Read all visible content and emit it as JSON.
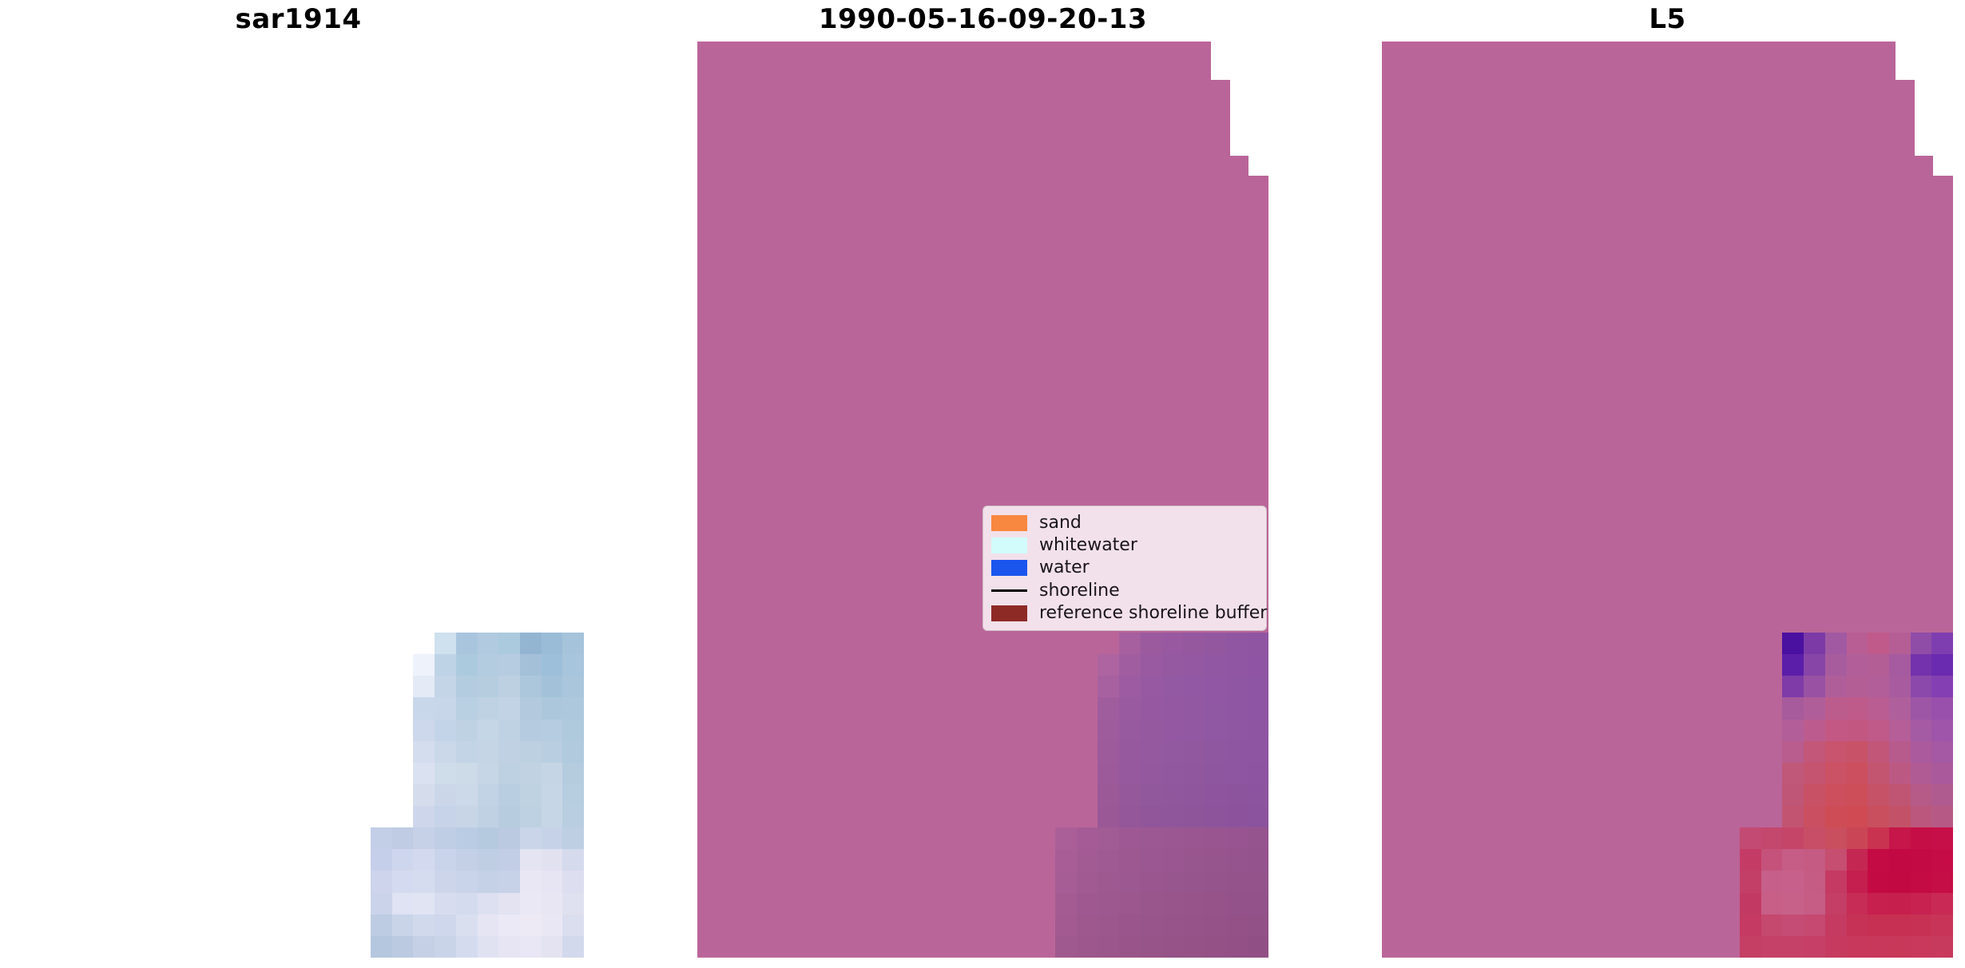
{
  "figure": {
    "type": "multi-panel image comparison",
    "background": "#ffffff"
  },
  "colors": {
    "scene_pink": "#ba6599",
    "title_color": "#000000"
  },
  "panels": {
    "left": {
      "title": "sar1914"
    },
    "middle": {
      "title": "1990-05-16-09-20-13"
    },
    "right": {
      "title": "L5"
    }
  },
  "legend": {
    "background": "#f2e1ea",
    "border": "#cfc0c9",
    "items": [
      {
        "label": "sand",
        "color": "#f8873f",
        "type": "patch"
      },
      {
        "label": "whitewater",
        "color": "#d2fbfb",
        "type": "patch"
      },
      {
        "label": "water",
        "color": "#1a56ee",
        "type": "patch"
      },
      {
        "label": "shoreline",
        "color": "#000000",
        "type": "line"
      },
      {
        "label": "reference shoreline buffer",
        "color": "#8e2a26",
        "type": "patch"
      }
    ]
  },
  "chart_data": [
    {
      "type": "heatmap",
      "title": "sar1914",
      "description": "Pixelated SAR backscatter tile, L-shaped footprint, pale blue shades on white background",
      "grid_rows": 15,
      "grid_cols": 10,
      "background": null,
      "cell_colors": [
        [
          null,
          null,
          null,
          "#cfe0ee",
          "#a9c5de",
          "#b1cadf",
          "#accadd",
          "#93b5d2",
          "#9bbcd7",
          "#a5c3da"
        ],
        [
          null,
          null,
          "#eef2fb",
          "#bfd3e6",
          "#accade",
          "#b4cce0",
          "#b6cce0",
          "#a4c0d8",
          "#9ebfda",
          "#a7c5dc"
        ],
        [
          null,
          null,
          "#e4eaf6",
          "#c4d5e7",
          "#b3cce0",
          "#b6cde0",
          "#bdd0e2",
          "#acc6db",
          "#a3c2da",
          "#aac6dc"
        ],
        [
          null,
          null,
          "#c9d7eb",
          "#c7d7e9",
          "#b9cfe2",
          "#bed2e3",
          "#c1d3e4",
          "#b3cade",
          "#acc7db",
          "#adc8dc"
        ],
        [
          null,
          null,
          "#cdd8ec",
          "#c4d4e8",
          "#bfd2e4",
          "#c5d6e6",
          "#bfd2e3",
          "#b5cbdf",
          "#b6cce0",
          "#afc9dd"
        ],
        [
          null,
          null,
          "#d4ddee",
          "#cad8ea",
          "#c3d4e6",
          "#c5d5e6",
          "#bfd1e3",
          "#bcd0e1",
          "#b9cee1",
          "#b1cade"
        ],
        [
          null,
          null,
          "#dae1f1",
          "#cfdcea",
          "#cddae8",
          "#c7d6e6",
          "#bed1e3",
          "#c1d3e3",
          "#c5d5e5",
          "#b5ccdf"
        ],
        [
          null,
          null,
          "#d5dded",
          "#cbd7e9",
          "#ccd9e8",
          "#c2d3e5",
          "#bacee1",
          "#bfd2e2",
          "#c7d6e6",
          "#b7cde0"
        ],
        [
          null,
          null,
          "#cdd6ea",
          "#c6d3e8",
          "#c7d5e7",
          "#c0d1e4",
          "#b8cce0",
          "#bed1e2",
          "#c7d6e6",
          "#bacee1"
        ],
        [
          "#c3cee7",
          "#c0cce4",
          "#c6d1e8",
          "#c0cee5",
          "#bacce3",
          "#b6cadf",
          "#bbcae1",
          "#cad5e9",
          "#c5d2e7",
          "#becfe3"
        ],
        [
          "#c6cfe9",
          "#ced6ed",
          "#d3daef",
          "#c9d3e9",
          "#c4d0e6",
          "#c0cee4",
          "#c2cee5",
          "#e4e4f2",
          "#e1e1f0",
          "#d5daed"
        ],
        [
          "#cdd4eb",
          "#d4daef",
          "#d6dcf0",
          "#ccd5ea",
          "#c9d3e9",
          "#c5d1e6",
          "#c7d1e7",
          "#eae7f5",
          "#e7e4f3",
          "#dddeef"
        ],
        [
          "#cad3ea",
          "#dfe3f3",
          "#e0e4f3",
          "#d7ddef",
          "#d4dbee",
          "#dde0f1",
          "#e3e3f2",
          "#ebe8f5",
          "#e9e6f4",
          "#e0e1f0"
        ],
        [
          "#bdcce3",
          "#c9d4e9",
          "#d1d9ec",
          "#ced7eb",
          "#dadff0",
          "#e6e5f4",
          "#ebe9f6",
          "#edeaf6",
          "#eae7f4",
          "#dadeee"
        ],
        [
          "#b4c7de",
          "#bbcae1",
          "#c5d0e6",
          "#cad4e9",
          "#d5dbef",
          "#e0e2f2",
          "#e7e5f4",
          "#e9e7f5",
          "#e3e3f1",
          "#d3d9ec"
        ]
      ]
    },
    {
      "type": "heatmap",
      "title": "1990-05-16-09-20-13",
      "description": "Classified scene: pink stepped polygon with muted purple L-shaped overlay in bottom-right",
      "grid_rows": 15,
      "grid_cols": 10,
      "background": "#ba6599",
      "cell_colors": [
        [
          null,
          null,
          null,
          "#a65f9f",
          "#9b5a9e",
          "#9859a0",
          "#95589f",
          "#9357a0",
          "#9156a1",
          "#9055a2"
        ],
        [
          null,
          null,
          "#ad64a0",
          "#a05da0",
          "#995aa1",
          "#9559a2",
          "#9458a2",
          "#9257a3",
          "#9056a3",
          "#8f55a4"
        ],
        [
          null,
          null,
          "#a861a0",
          "#9d5ca1",
          "#975aa2",
          "#9459a3",
          "#9358a3",
          "#9157a4",
          "#8f56a4",
          "#8e55a5"
        ],
        [
          null,
          null,
          "#a05d9e",
          "#9a5aa0",
          "#9659a1",
          "#9458a2",
          "#9258a2",
          "#9057a3",
          "#8f56a3",
          "#8e55a4"
        ],
        [
          null,
          null,
          "#9e5c9d",
          "#985a9f",
          "#9559a0",
          "#9358a1",
          "#9258a1",
          "#9057a2",
          "#8f56a2",
          "#8e55a3"
        ],
        [
          null,
          null,
          "#9d5b9c",
          "#97599e",
          "#94599f",
          "#9258a0",
          "#9158a0",
          "#9057a1",
          "#8e56a1",
          "#8d55a2"
        ],
        [
          null,
          null,
          "#9c5a9a",
          "#96599d",
          "#93589e",
          "#92589f",
          "#90579f",
          "#8f56a0",
          "#8e55a0",
          "#8d54a1"
        ],
        [
          null,
          null,
          "#9b5998",
          "#95589b",
          "#92589c",
          "#91579d",
          "#8f569d",
          "#8e559e",
          "#8d549e",
          "#8c549f"
        ],
        [
          null,
          null,
          "#9a5896",
          "#945799",
          "#91569a",
          "#90569b",
          "#8e559b",
          "#8d549c",
          "#8c539c",
          "#8b539d"
        ],
        [
          "#ab5f98",
          "#a55c96",
          "#a15b95",
          "#9e5994",
          "#9c5893",
          "#9a5792",
          "#995691",
          "#985590",
          "#975490",
          "#96548f"
        ],
        [
          "#a85d96",
          "#a35b94",
          "#9f5a93",
          "#9d5892",
          "#9b5791",
          "#995690",
          "#98568f",
          "#97558e",
          "#96548e",
          "#95538d"
        ],
        [
          "#a65c94",
          "#a15a92",
          "#9e5991",
          "#9c5890",
          "#9a578f",
          "#98568e",
          "#97558d",
          "#96548c",
          "#95538c",
          "#94538b"
        ],
        [
          "#a45b92",
          "#a05990",
          "#9d588f",
          "#9b578e",
          "#99568d",
          "#97558c",
          "#96548b",
          "#95538a",
          "#94528a",
          "#935289"
        ],
        [
          "#a25a90",
          "#9e588e",
          "#9c578d",
          "#9a568c",
          "#98558b",
          "#96548a",
          "#955389",
          "#945288",
          "#935188",
          "#925187"
        ],
        [
          "#a0598e",
          "#9d578c",
          "#9b568b",
          "#99558a",
          "#975489",
          "#955388",
          "#945287",
          "#935186",
          "#925086",
          "#915085"
        ]
      ]
    },
    {
      "type": "heatmap",
      "title": "L5",
      "description": "Classified scene: pink stepped polygon with purple/crimson L-shaped overlay in bottom-right",
      "grid_rows": 15,
      "grid_cols": 10,
      "background": "#ba6599",
      "cell_colors": [
        [
          null,
          null,
          "#4a10a0",
          "#7b3aa6",
          "#a159a2",
          "#b85e94",
          "#c05a8a",
          "#b55e96",
          "#8f4da8",
          "#7f3eb0"
        ],
        [
          null,
          null,
          "#5b1ea9",
          "#8845a8",
          "#a75c9e",
          "#b25f99",
          "#b45e96",
          "#a65a9f",
          "#7433ac",
          "#6b2bb0"
        ],
        [
          null,
          null,
          "#7f3ba7",
          "#9952a3",
          "#b05e9a",
          "#b45e96",
          "#b25e98",
          "#a85c9f",
          "#8c49ac",
          "#8440b3"
        ],
        [
          null,
          null,
          "#a75a9c",
          "#b05e9a",
          "#bc5c8d",
          "#be5b8a",
          "#ba5d92",
          "#b05f9d",
          "#9d56a6",
          "#9850ac"
        ],
        [
          null,
          null,
          "#b25e98",
          "#bc5c8e",
          "#c35884",
          "#c25781",
          "#bf5a89",
          "#b55e98",
          "#a55aa4",
          "#9f55a9"
        ],
        [
          null,
          null,
          "#b95c8e",
          "#c25779",
          "#c8546d",
          "#c85368",
          "#c15679",
          "#b75b8d",
          "#ab5a9d",
          "#a558a3"
        ],
        [
          null,
          null,
          "#bf5879",
          "#c55471",
          "#cb5164",
          "#cc4f5f",
          "#c45570",
          "#bc5983",
          "#b05b94",
          "#aa5a9b"
        ],
        [
          null,
          null,
          "#c05677",
          "#c85166",
          "#cd4e5c",
          "#cd4d59",
          "#c65267",
          "#c05573",
          "#b65a88",
          "#b05b90"
        ],
        [
          null,
          null,
          "#c25471",
          "#ca4f60",
          "#ce4c55",
          "#cf4a52",
          "#c94f5e",
          "#c35268",
          "#bb577d",
          "#b65a85"
        ],
        [
          "#c34a72",
          "#c4476e",
          "#c54568",
          "#c74e66",
          "#c94e5e",
          "#ca4656",
          "#c93350",
          "#c6164a",
          "#c50e46",
          "#c60f48"
        ],
        [
          "#c43c66",
          "#c5527b",
          "#c65d87",
          "#c55a82",
          "#c64e71",
          "#c52753",
          "#c40b44",
          "#c30943",
          "#c40a44",
          "#c50c46"
        ],
        [
          "#c33f68",
          "#c65f89",
          "#c7618b",
          "#c55c84",
          "#c43a62",
          "#c41f4f",
          "#c40a43",
          "#c30942",
          "#c40b44",
          "#c50d46"
        ],
        [
          "#c23a64",
          "#c75f87",
          "#c8618a",
          "#c55d85",
          "#c43e66",
          "#c62c55",
          "#c7204e",
          "#c71f4d",
          "#c72250",
          "#c82a55"
        ],
        [
          "#c43a62",
          "#c5486f",
          "#c54d75",
          "#c54971",
          "#c53a61",
          "#c63156",
          "#c73053",
          "#c73052",
          "#c73154",
          "#c83458"
        ],
        [
          "#c53e64",
          "#c64168",
          "#c64168",
          "#c63f66",
          "#c63a5f",
          "#c7385c",
          "#c7385a",
          "#c73859",
          "#c8395b",
          "#c83a5d"
        ]
      ]
    }
  ]
}
